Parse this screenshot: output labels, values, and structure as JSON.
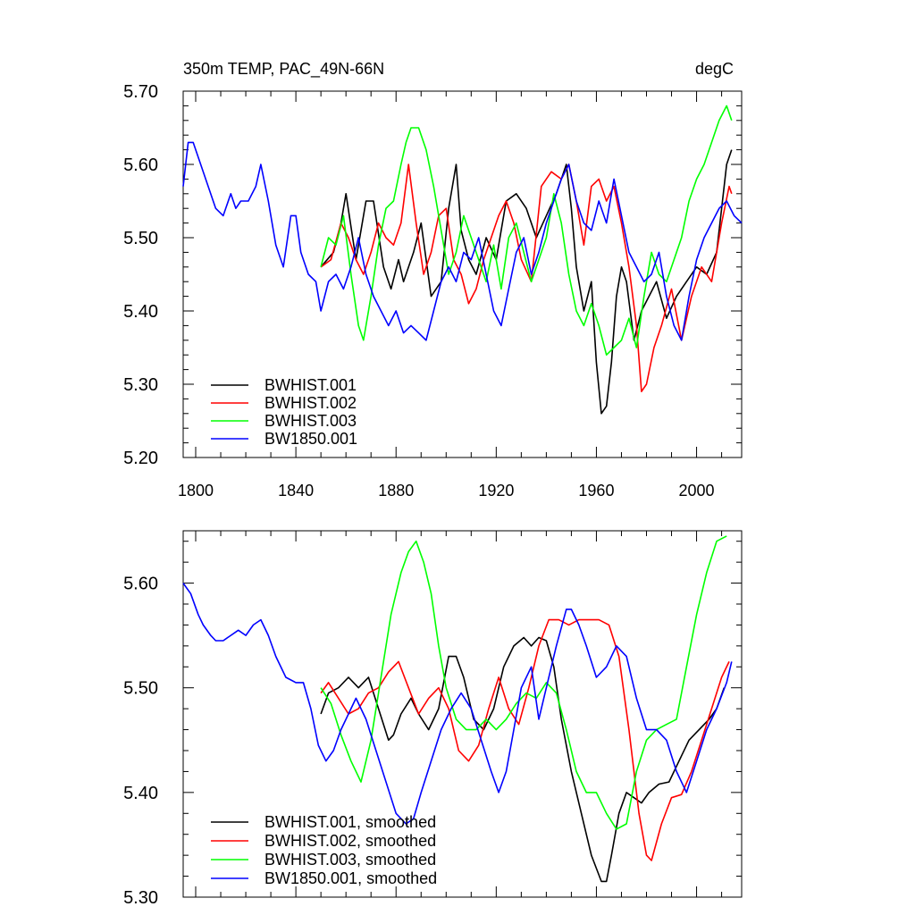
{
  "chart_data": [
    {
      "type": "line",
      "title": "350m TEMP, PAC_49N-66N",
      "units": "degC",
      "xlim": [
        1795,
        2018
      ],
      "ylim": [
        5.2,
        5.7
      ],
      "xticks": [
        1800,
        1840,
        1880,
        1920,
        1960,
        2000
      ],
      "yticks": [
        5.2,
        5.3,
        5.4,
        5.5,
        5.6,
        5.7
      ],
      "ytick_labels": [
        "5.20",
        "5.30",
        "5.40",
        "5.50",
        "5.60",
        "5.70"
      ],
      "legend_position": "bottom-left",
      "series": [
        {
          "name": "BWHIST.001",
          "color": "#000000",
          "x": [
            1850,
            1855,
            1858,
            1860,
            1864,
            1868,
            1871,
            1875,
            1878,
            1881,
            1883,
            1887,
            1890,
            1894,
            1898,
            1901,
            1904,
            1906,
            1909,
            1912,
            1916,
            1920,
            1924,
            1928,
            1932,
            1936,
            1940,
            1944,
            1948,
            1950,
            1952,
            1955,
            1958,
            1960,
            1962,
            1964,
            1966,
            1968,
            1970,
            1972,
            1975,
            1978,
            1981,
            1984,
            1988,
            1992,
            1996,
            2000,
            2004,
            2008,
            2012,
            2014
          ],
          "y": [
            5.46,
            5.48,
            5.52,
            5.56,
            5.47,
            5.55,
            5.55,
            5.46,
            5.43,
            5.47,
            5.44,
            5.48,
            5.52,
            5.42,
            5.44,
            5.54,
            5.6,
            5.51,
            5.47,
            5.45,
            5.5,
            5.47,
            5.55,
            5.56,
            5.54,
            5.5,
            5.53,
            5.56,
            5.6,
            5.54,
            5.46,
            5.4,
            5.44,
            5.33,
            5.26,
            5.27,
            5.33,
            5.42,
            5.46,
            5.44,
            5.36,
            5.4,
            5.42,
            5.44,
            5.39,
            5.42,
            5.44,
            5.46,
            5.45,
            5.48,
            5.6,
            5.62
          ]
        },
        {
          "name": "BWHIST.002",
          "color": "#ff0000",
          "x": [
            1850,
            1854,
            1858,
            1861,
            1864,
            1867,
            1870,
            1873,
            1876,
            1879,
            1882,
            1885,
            1888,
            1891,
            1894,
            1897,
            1900,
            1903,
            1906,
            1909,
            1912,
            1915,
            1918,
            1921,
            1924,
            1927,
            1930,
            1934,
            1938,
            1942,
            1946,
            1949,
            1952,
            1955,
            1958,
            1961,
            1964,
            1967,
            1970,
            1973,
            1976,
            1978,
            1980,
            1983,
            1986,
            1990,
            1994,
            1998,
            2002,
            2006,
            2010,
            2013,
            2014
          ],
          "y": [
            5.46,
            5.47,
            5.52,
            5.5,
            5.47,
            5.45,
            5.48,
            5.52,
            5.5,
            5.49,
            5.52,
            5.6,
            5.52,
            5.45,
            5.48,
            5.53,
            5.54,
            5.47,
            5.45,
            5.41,
            5.43,
            5.47,
            5.5,
            5.53,
            5.55,
            5.52,
            5.47,
            5.44,
            5.57,
            5.59,
            5.58,
            5.6,
            5.55,
            5.49,
            5.57,
            5.58,
            5.55,
            5.57,
            5.52,
            5.46,
            5.38,
            5.29,
            5.3,
            5.35,
            5.38,
            5.43,
            5.36,
            5.42,
            5.46,
            5.44,
            5.52,
            5.57,
            5.56
          ]
        },
        {
          "name": "BWHIST.003",
          "color": "#00ff00",
          "x": [
            1850,
            1853,
            1856,
            1859,
            1862,
            1865,
            1867,
            1870,
            1873,
            1876,
            1879,
            1882,
            1884,
            1886,
            1889,
            1892,
            1895,
            1898,
            1901,
            1904,
            1907,
            1910,
            1913,
            1916,
            1919,
            1922,
            1925,
            1928,
            1931,
            1934,
            1937,
            1940,
            1943,
            1946,
            1949,
            1952,
            1955,
            1958,
            1961,
            1964,
            1967,
            1970,
            1973,
            1976,
            1979,
            1982,
            1985,
            1988,
            1991,
            1994,
            1997,
            2000,
            2003,
            2006,
            2009,
            2012,
            2014
          ],
          "y": [
            5.46,
            5.5,
            5.49,
            5.53,
            5.45,
            5.38,
            5.36,
            5.42,
            5.49,
            5.54,
            5.55,
            5.6,
            5.63,
            5.65,
            5.65,
            5.62,
            5.57,
            5.51,
            5.45,
            5.48,
            5.53,
            5.5,
            5.47,
            5.44,
            5.49,
            5.43,
            5.5,
            5.52,
            5.48,
            5.44,
            5.47,
            5.5,
            5.56,
            5.52,
            5.45,
            5.4,
            5.38,
            5.41,
            5.38,
            5.34,
            5.35,
            5.36,
            5.39,
            5.35,
            5.42,
            5.48,
            5.45,
            5.44,
            5.47,
            5.5,
            5.55,
            5.58,
            5.6,
            5.63,
            5.66,
            5.68,
            5.66
          ]
        },
        {
          "name": "BW1850.001",
          "color": "#0000ff",
          "x": [
            1795,
            1797,
            1799,
            1802,
            1805,
            1808,
            1811,
            1814,
            1816,
            1818,
            1821,
            1824,
            1826,
            1829,
            1832,
            1835,
            1838,
            1840,
            1842,
            1845,
            1848,
            1850,
            1853,
            1856,
            1859,
            1862,
            1865,
            1868,
            1871,
            1874,
            1877,
            1880,
            1883,
            1886,
            1889,
            1892,
            1895,
            1898,
            1901,
            1904,
            1907,
            1910,
            1913,
            1916,
            1919,
            1922,
            1925,
            1928,
            1931,
            1934,
            1937,
            1940,
            1943,
            1946,
            1949,
            1952,
            1955,
            1958,
            1961,
            1964,
            1967,
            1970,
            1973,
            1976,
            1979,
            1982,
            1985,
            1988,
            1991,
            1994,
            1997,
            2000,
            2003,
            2006,
            2009,
            2012,
            2015,
            2018
          ],
          "y": [
            5.57,
            5.63,
            5.63,
            5.6,
            5.57,
            5.54,
            5.53,
            5.56,
            5.54,
            5.55,
            5.55,
            5.57,
            5.6,
            5.55,
            5.49,
            5.46,
            5.53,
            5.53,
            5.48,
            5.45,
            5.44,
            5.4,
            5.44,
            5.45,
            5.43,
            5.46,
            5.5,
            5.45,
            5.42,
            5.4,
            5.38,
            5.4,
            5.37,
            5.38,
            5.37,
            5.36,
            5.4,
            5.44,
            5.46,
            5.44,
            5.48,
            5.47,
            5.5,
            5.45,
            5.4,
            5.38,
            5.43,
            5.48,
            5.5,
            5.45,
            5.48,
            5.52,
            5.55,
            5.58,
            5.6,
            5.55,
            5.52,
            5.51,
            5.55,
            5.52,
            5.58,
            5.53,
            5.48,
            5.46,
            5.44,
            5.45,
            5.48,
            5.42,
            5.38,
            5.36,
            5.42,
            5.47,
            5.5,
            5.52,
            5.54,
            5.55,
            5.53,
            5.52
          ]
        }
      ]
    },
    {
      "type": "line",
      "xlim": [
        1795,
        2018
      ],
      "ylim": [
        5.3,
        5.65
      ],
      "xticks": [
        1800,
        1840,
        1880,
        1920,
        1960,
        2000
      ],
      "yticks": [
        5.3,
        5.4,
        5.5,
        5.6
      ],
      "ytick_labels": [
        "5.30",
        "5.40",
        "5.50",
        "5.60"
      ],
      "legend_position": "bottom-left",
      "series": [
        {
          "name": "BWHIST.001, smoothed",
          "color": "#000000",
          "x": [
            1850,
            1853,
            1857,
            1861,
            1865,
            1869,
            1873,
            1877,
            1879,
            1882,
            1886,
            1889,
            1893,
            1897,
            1901,
            1904,
            1907,
            1911,
            1915,
            1919,
            1923,
            1927,
            1931,
            1934,
            1937,
            1940,
            1943,
            1946,
            1950,
            1954,
            1958,
            1962,
            1964,
            1966,
            1969,
            1972,
            1975,
            1978,
            1981,
            1985,
            1989,
            1993,
            1997,
            2001,
            2005,
            2008,
            2011
          ],
          "y": [
            5.475,
            5.495,
            5.5,
            5.51,
            5.5,
            5.51,
            5.48,
            5.45,
            5.455,
            5.475,
            5.49,
            5.475,
            5.46,
            5.48,
            5.53,
            5.53,
            5.51,
            5.47,
            5.46,
            5.48,
            5.52,
            5.54,
            5.548,
            5.54,
            5.548,
            5.545,
            5.52,
            5.47,
            5.42,
            5.38,
            5.34,
            5.315,
            5.315,
            5.34,
            5.38,
            5.4,
            5.395,
            5.39,
            5.4,
            5.408,
            5.41,
            5.43,
            5.45,
            5.46,
            5.47,
            5.48,
            5.5
          ]
        },
        {
          "name": "BWHIST.002, smoothed",
          "color": "#ff0000",
          "x": [
            1850,
            1853,
            1857,
            1861,
            1865,
            1869,
            1873,
            1877,
            1881,
            1885,
            1889,
            1893,
            1897,
            1901,
            1905,
            1909,
            1913,
            1917,
            1921,
            1925,
            1929,
            1933,
            1937,
            1941,
            1945,
            1949,
            1953,
            1957,
            1961,
            1965,
            1969,
            1973,
            1977,
            1980,
            1982,
            1986,
            1990,
            1994,
            1998,
            2002,
            2006,
            2010,
            2013
          ],
          "y": [
            5.495,
            5.505,
            5.49,
            5.475,
            5.48,
            5.495,
            5.5,
            5.515,
            5.525,
            5.5,
            5.475,
            5.49,
            5.5,
            5.48,
            5.44,
            5.43,
            5.445,
            5.48,
            5.51,
            5.48,
            5.465,
            5.5,
            5.54,
            5.565,
            5.565,
            5.56,
            5.565,
            5.565,
            5.565,
            5.56,
            5.53,
            5.46,
            5.38,
            5.34,
            5.335,
            5.37,
            5.395,
            5.398,
            5.42,
            5.45,
            5.48,
            5.51,
            5.525
          ]
        },
        {
          "name": "BWHIST.003, smoothed",
          "color": "#00ff00",
          "x": [
            1850,
            1854,
            1858,
            1862,
            1866,
            1870,
            1874,
            1878,
            1882,
            1885,
            1888,
            1891,
            1894,
            1897,
            1900,
            1904,
            1908,
            1912,
            1916,
            1920,
            1924,
            1928,
            1932,
            1936,
            1940,
            1944,
            1948,
            1952,
            1956,
            1960,
            1964,
            1968,
            1972,
            1976,
            1980,
            1984,
            1988,
            1992,
            1996,
            2000,
            2004,
            2008,
            2012
          ],
          "y": [
            5.5,
            5.485,
            5.455,
            5.43,
            5.41,
            5.45,
            5.51,
            5.57,
            5.61,
            5.63,
            5.64,
            5.62,
            5.59,
            5.54,
            5.5,
            5.47,
            5.46,
            5.46,
            5.47,
            5.46,
            5.47,
            5.485,
            5.495,
            5.49,
            5.505,
            5.495,
            5.46,
            5.42,
            5.4,
            5.4,
            5.38,
            5.365,
            5.37,
            5.42,
            5.45,
            5.46,
            5.465,
            5.47,
            5.52,
            5.57,
            5.61,
            5.64,
            5.645
          ]
        },
        {
          "name": "BW1850.001, smoothed",
          "color": "#0000ff",
          "x": [
            1795,
            1798,
            1801,
            1803,
            1806,
            1808,
            1811,
            1814,
            1817,
            1820,
            1823,
            1826,
            1829,
            1832,
            1836,
            1840,
            1843,
            1846,
            1849,
            1852,
            1855,
            1858,
            1861,
            1864,
            1868,
            1872,
            1876,
            1880,
            1884,
            1887,
            1890,
            1894,
            1898,
            1902,
            1906,
            1910,
            1914,
            1918,
            1921,
            1924,
            1927,
            1930,
            1934,
            1937,
            1940,
            1944,
            1948,
            1950,
            1953,
            1956,
            1960,
            1964,
            1968,
            1972,
            1976,
            1980,
            1984,
            1988,
            1992,
            1996,
            2000,
            2004,
            2008,
            2012,
            2014
          ],
          "y": [
            5.6,
            5.59,
            5.57,
            5.56,
            5.55,
            5.545,
            5.545,
            5.55,
            5.555,
            5.55,
            5.56,
            5.565,
            5.55,
            5.53,
            5.51,
            5.505,
            5.505,
            5.48,
            5.445,
            5.43,
            5.44,
            5.46,
            5.475,
            5.49,
            5.47,
            5.44,
            5.41,
            5.38,
            5.37,
            5.375,
            5.4,
            5.43,
            5.46,
            5.48,
            5.495,
            5.48,
            5.45,
            5.42,
            5.4,
            5.42,
            5.46,
            5.5,
            5.52,
            5.47,
            5.5,
            5.54,
            5.575,
            5.575,
            5.56,
            5.54,
            5.51,
            5.52,
            5.54,
            5.53,
            5.49,
            5.46,
            5.46,
            5.45,
            5.42,
            5.4,
            5.43,
            5.46,
            5.48,
            5.505,
            5.525
          ]
        }
      ]
    }
  ]
}
